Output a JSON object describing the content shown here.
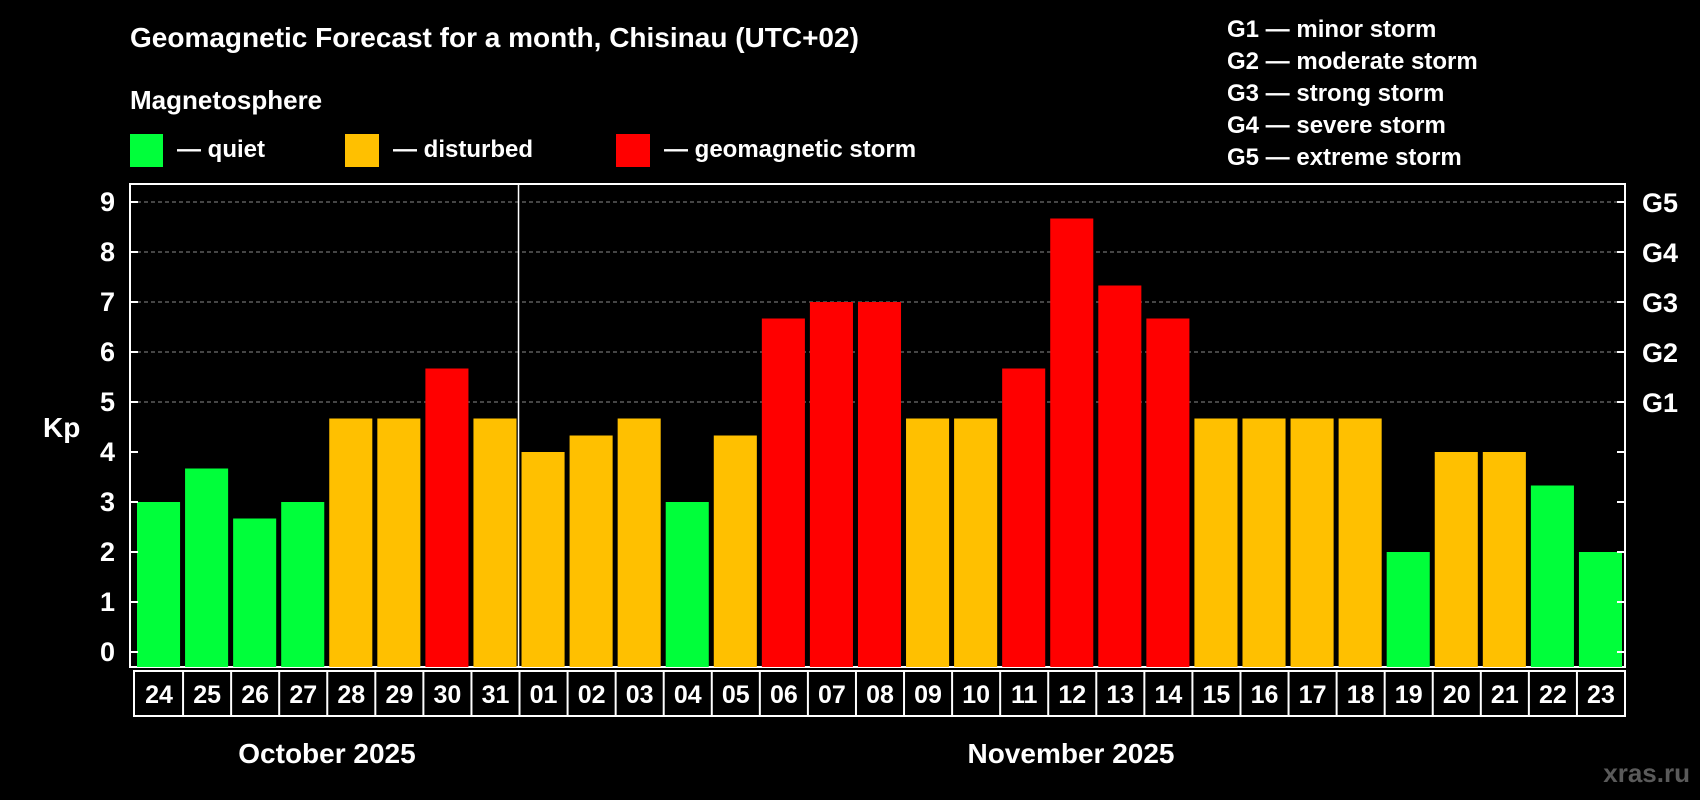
{
  "title": "Geomagnetic Forecast for a month, Chisinau (UTC+02)",
  "legend": {
    "heading": "Magnetosphere",
    "items": [
      {
        "label": "— quiet",
        "color": "#00ff3a"
      },
      {
        "label": "— disturbed",
        "color": "#ffc000"
      },
      {
        "label": "— geomagnetic storm",
        "color": "#ff0000"
      }
    ]
  },
  "storm_scale": [
    "G1 — minor storm",
    "G2 — moderate storm",
    "G3 — strong storm",
    "G4 — severe storm",
    "G5 — extreme storm"
  ],
  "months": [
    "October 2025",
    "November 2025"
  ],
  "watermark": "xras.ru",
  "chart_data": {
    "type": "bar",
    "ylabel": "Kp",
    "ylim": [
      0,
      9
    ],
    "y_ticks": [
      0,
      1,
      2,
      3,
      4,
      5,
      6,
      7,
      8,
      9
    ],
    "right_axis_labels": [
      {
        "kp": 5,
        "label": "G1"
      },
      {
        "kp": 6,
        "label": "G2"
      },
      {
        "kp": 7,
        "label": "G3"
      },
      {
        "kp": 8,
        "label": "G4"
      },
      {
        "kp": 9,
        "label": "G5"
      }
    ],
    "grid": "dashed horizontal lines at Kp 5–9",
    "categories": [
      "24",
      "25",
      "26",
      "27",
      "28",
      "29",
      "30",
      "31",
      "01",
      "02",
      "03",
      "04",
      "05",
      "06",
      "07",
      "08",
      "09",
      "10",
      "11",
      "12",
      "13",
      "14",
      "15",
      "16",
      "17",
      "18",
      "19",
      "20",
      "21",
      "22",
      "23"
    ],
    "values": [
      3.0,
      3.67,
      2.67,
      3.0,
      4.67,
      4.67,
      5.67,
      4.67,
      4.0,
      4.33,
      4.67,
      3.0,
      4.33,
      6.67,
      7.0,
      7.0,
      4.67,
      4.67,
      5.67,
      8.67,
      7.33,
      6.67,
      4.67,
      4.67,
      4.67,
      4.67,
      2.0,
      4.0,
      4.0,
      3.33,
      2.0
    ],
    "status": [
      "quiet",
      "quiet",
      "quiet",
      "quiet",
      "disturbed",
      "disturbed",
      "storm",
      "disturbed",
      "disturbed",
      "disturbed",
      "disturbed",
      "quiet",
      "disturbed",
      "storm",
      "storm",
      "storm",
      "disturbed",
      "disturbed",
      "storm",
      "storm",
      "storm",
      "storm",
      "disturbed",
      "disturbed",
      "disturbed",
      "disturbed",
      "quiet",
      "disturbed",
      "disturbed",
      "quiet",
      "quiet"
    ],
    "colors": {
      "quiet": "#00ff3a",
      "disturbed": "#ffc000",
      "storm": "#ff0000"
    },
    "month_boundary_after": "31"
  }
}
